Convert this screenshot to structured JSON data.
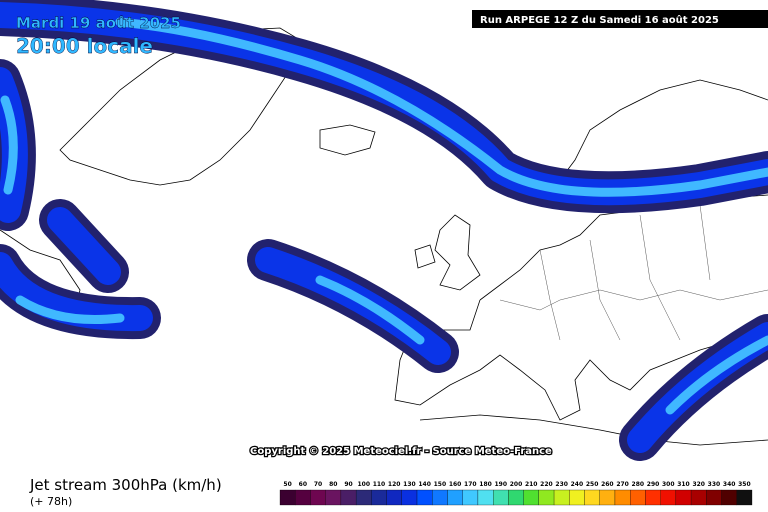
{
  "header": {
    "date": "Mardi 19 août 2025",
    "time": "20:00 locale",
    "run": "Run ARPEGE 12 Z du Samedi 16 août 2025"
  },
  "copyright": "Copyright © 2025 Meteociel.fr - Source Meteo-France",
  "footer": {
    "title": "Jet stream 300hPa (km/h)",
    "lead": "(+ 78h)"
  },
  "legend": {
    "items": [
      {
        "value": 50,
        "color": "#3b0030"
      },
      {
        "value": 60,
        "color": "#55003f"
      },
      {
        "value": 70,
        "color": "#6e0650"
      },
      {
        "value": 80,
        "color": "#6a1460"
      },
      {
        "value": 90,
        "color": "#4a1e66"
      },
      {
        "value": 100,
        "color": "#2c2a78"
      },
      {
        "value": 110,
        "color": "#1a2a9a"
      },
      {
        "value": 120,
        "color": "#1028c0"
      },
      {
        "value": 130,
        "color": "#0a30e0"
      },
      {
        "value": 140,
        "color": "#0050ff"
      },
      {
        "value": 150,
        "color": "#1078ff"
      },
      {
        "value": 160,
        "color": "#20a0ff"
      },
      {
        "value": 170,
        "color": "#40c8ff"
      },
      {
        "value": 180,
        "color": "#50e0f0"
      },
      {
        "value": 190,
        "color": "#40e0b0"
      },
      {
        "value": 200,
        "color": "#30d870"
      },
      {
        "value": 210,
        "color": "#50e030"
      },
      {
        "value": 220,
        "color": "#90e820"
      },
      {
        "value": 230,
        "color": "#c8f020"
      },
      {
        "value": 240,
        "color": "#f0f020"
      },
      {
        "value": 250,
        "color": "#ffd820"
      },
      {
        "value": 260,
        "color": "#ffb010"
      },
      {
        "value": 270,
        "color": "#ff8c00"
      },
      {
        "value": 280,
        "color": "#ff6000"
      },
      {
        "value": 290,
        "color": "#ff3000"
      },
      {
        "value": 300,
        "color": "#f01000"
      },
      {
        "value": 310,
        "color": "#d00000"
      },
      {
        "value": 320,
        "color": "#a80000"
      },
      {
        "value": 330,
        "color": "#800000"
      },
      {
        "value": 340,
        "color": "#500000"
      },
      {
        "value": 350,
        "color": "#101010"
      }
    ]
  }
}
